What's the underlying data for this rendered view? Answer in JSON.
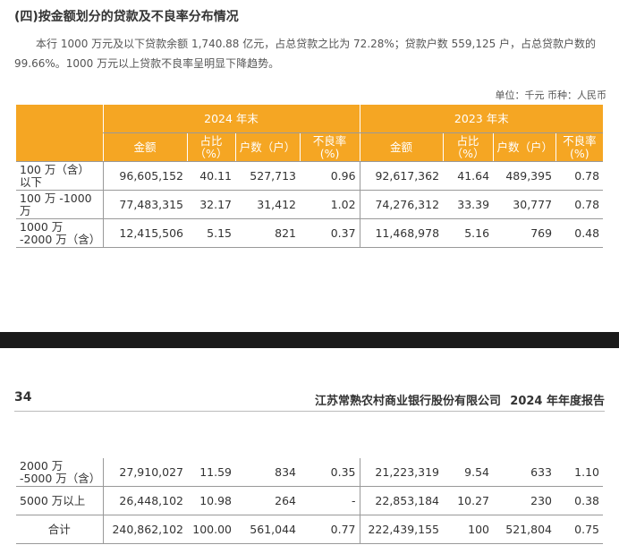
{
  "section": {
    "title": "(四)按金额划分的贷款及不良率分布情况",
    "paragraph": "本行 1000 万元及以下贷款余额 1,740.88 亿元，占总贷款之比为 72.28%；贷款户数 559,125 户，占总贷款户数的 99.66%。1000 万元以上贷款不良率呈明显下降趋势。",
    "unit": "单位：千元 币种：人民币"
  },
  "table": {
    "year_2024": "2024 年末",
    "year_2023": "2023 年末",
    "col_amount": "金额",
    "col_share": "占比（%）",
    "col_households": "户数（户）",
    "col_npl": "不良率\n(%)",
    "rows_top": [
      {
        "label": "100 万（含）以下",
        "a24": "96,605,152",
        "s24": "40.11",
        "h24": "527,713",
        "n24": "0.96",
        "a23": "92,617,362",
        "s23": "41.64",
        "h23": "489,395",
        "n23": "0.78"
      },
      {
        "label": "100 万 -1000 万",
        "a24": "77,483,315",
        "s24": "32.17",
        "h24": "31,412",
        "n24": "1.02",
        "a23": "74,276,312",
        "s23": "33.39",
        "h23": "30,777",
        "n23": "0.78"
      },
      {
        "label": "1000 万 -2000 万（含）",
        "a24": "12,415,506",
        "s24": "5.15",
        "h24": "821",
        "n24": "0.37",
        "a23": "11,468,978",
        "s23": "5.16",
        "h23": "769",
        "n23": "0.48"
      }
    ],
    "rows_bottom": [
      {
        "label": "2000 万 -5000 万（含）",
        "a24": "27,910,027",
        "s24": "11.59",
        "h24": "834",
        "n24": "0.35",
        "a23": "21,223,319",
        "s23": "9.54",
        "h23": "633",
        "n23": "1.10"
      },
      {
        "label": "5000 万以上",
        "a24": "26,448,102",
        "s24": "10.98",
        "h24": "264",
        "n24": "-",
        "a23": "22,853,184",
        "s23": "10.27",
        "h23": "230",
        "n23": "0.38"
      },
      {
        "label": "合计",
        "a24": "240,862,102",
        "s24": "100.00",
        "h24": "561,044",
        "n24": "0.77",
        "a23": "222,439,155",
        "s23": "100",
        "h23": "521,804",
        "n23": "0.75"
      }
    ]
  },
  "footer": {
    "page_number": "34",
    "bank_name": "江苏常熟农村商业银行股份有限公司",
    "report_name": "2024 年年度报告"
  }
}
